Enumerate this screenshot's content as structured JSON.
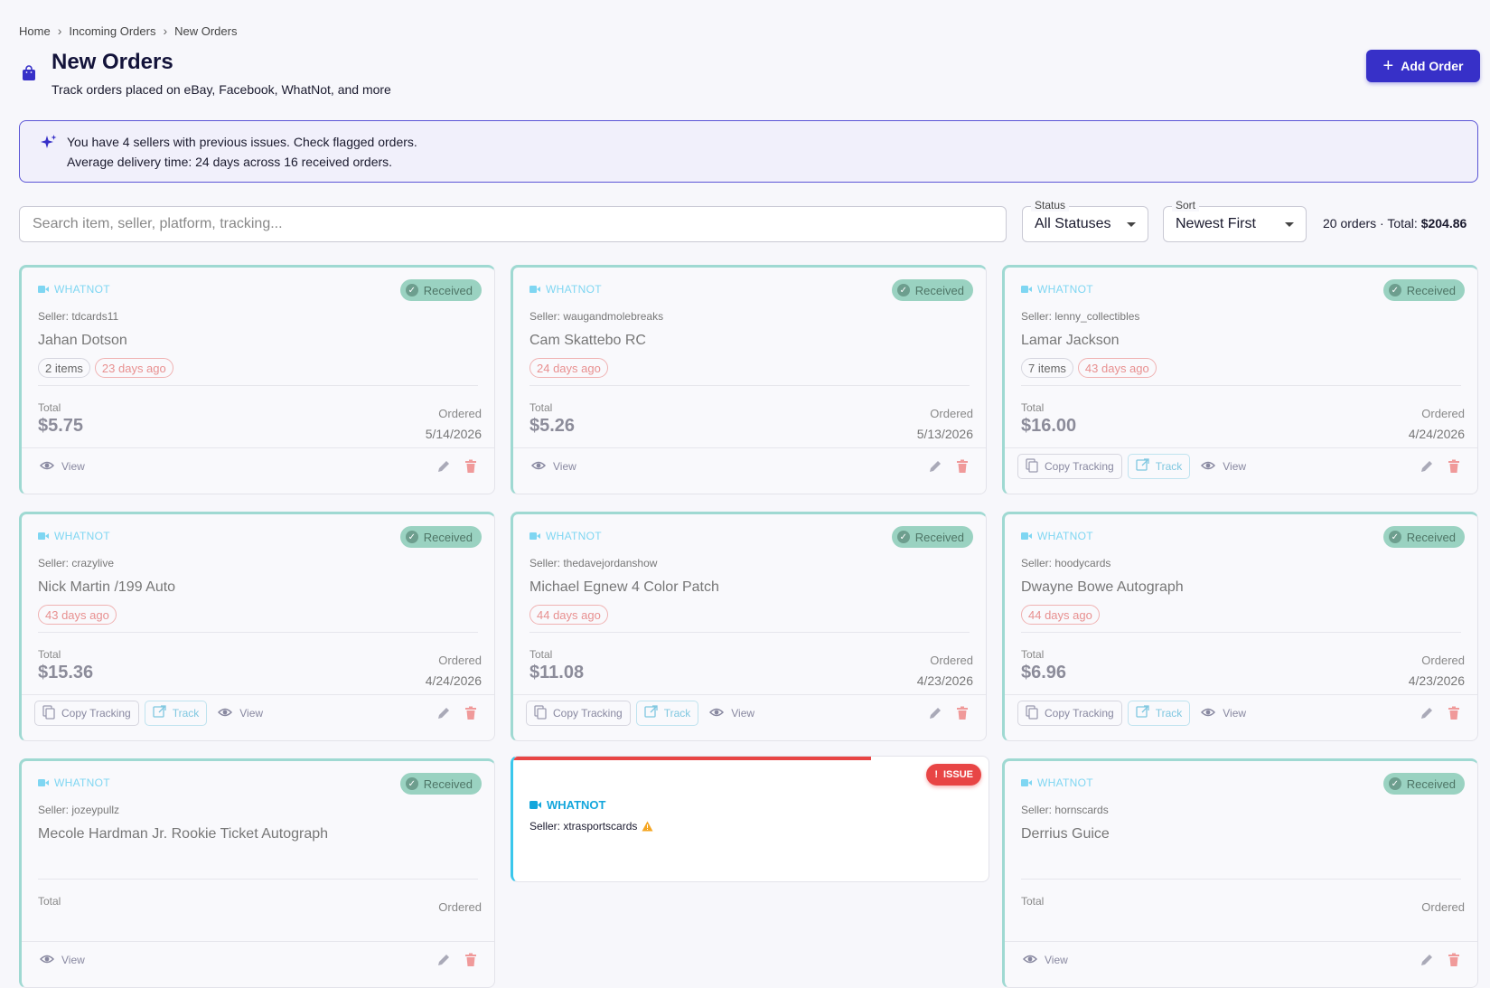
{
  "breadcrumb": [
    "Home",
    "Incoming Orders",
    "New Orders"
  ],
  "header": {
    "title": "New Orders",
    "subtitle": "Track orders placed on eBay, Facebook, WhatNot, and more",
    "add_button": "Add Order"
  },
  "banner": {
    "line1": "You have 4 sellers with previous issues. Check flagged orders.",
    "line2": "Average delivery time: 24 days across 16 received orders."
  },
  "filters": {
    "search_placeholder": "Search item, seller, platform, tracking...",
    "status_label": "Status",
    "status_value": "All Statuses",
    "sort_label": "Sort",
    "sort_value": "Newest First",
    "summary_prefix": "20 orders · Total: ",
    "summary_total": "$204.86"
  },
  "labels": {
    "total": "Total",
    "ordered": "Ordered",
    "copy_tracking": "Copy Tracking",
    "track": "Track",
    "view": "View",
    "received": "Received",
    "issue": "ISSUE"
  },
  "colors": {
    "accent": "#3730c8",
    "received_border": "#9fd9d2",
    "issue_red": "#e84545"
  },
  "orders": [
    {
      "platform": "WHATNOT",
      "status": "Received",
      "seller": "Seller: tdcards11",
      "item": "Jahan Dotson",
      "items_chip": "2 items",
      "age": "23 days ago",
      "total": "$5.75",
      "ordered": "5/14/2026",
      "tracking": false
    },
    {
      "platform": "WHATNOT",
      "status": "Received",
      "seller": "Seller: waugandmolebreaks",
      "item": "Cam Skattebo RC",
      "items_chip": "",
      "age": "24 days ago",
      "total": "$5.26",
      "ordered": "5/13/2026",
      "tracking": false
    },
    {
      "platform": "WHATNOT",
      "status": "Received",
      "seller": "Seller: lenny_collectibles",
      "item": "Lamar Jackson",
      "items_chip": "7 items",
      "age": "43 days ago",
      "total": "$16.00",
      "ordered": "4/24/2026",
      "tracking": true
    },
    {
      "platform": "WHATNOT",
      "status": "Received",
      "seller": "Seller: crazylive",
      "item": "Nick Martin /199 Auto",
      "items_chip": "",
      "age": "43 days ago",
      "total": "$15.36",
      "ordered": "4/24/2026",
      "tracking": true
    },
    {
      "platform": "WHATNOT",
      "status": "Received",
      "seller": "Seller: thedavejordanshow",
      "item": "Michael Egnew 4 Color Patch",
      "items_chip": "",
      "age": "44 days ago",
      "total": "$11.08",
      "ordered": "4/23/2026",
      "tracking": true
    },
    {
      "platform": "WHATNOT",
      "status": "Received",
      "seller": "Seller: hoodycards",
      "item": "Dwayne Bowe Autograph",
      "items_chip": "",
      "age": "44 days ago",
      "total": "$6.96",
      "ordered": "4/23/2026",
      "tracking": true
    },
    {
      "platform": "WHATNOT",
      "status": "Received",
      "seller": "Seller: jozeypullz",
      "item": "Mecole Hardman Jr. Rookie Ticket Autograph",
      "items_chip": "",
      "age": "",
      "total": "",
      "ordered": "",
      "tracking": false
    },
    {
      "platform": "WHATNOT",
      "status": "Received",
      "seller": "Seller: hornscards",
      "item": "Derrius Guice",
      "items_chip": "",
      "age": "",
      "total": "",
      "ordered": "",
      "tracking": false
    }
  ],
  "issue_order": {
    "platform": "WHATNOT",
    "seller": "Seller: xtrasportscards",
    "badge": "ISSUE"
  }
}
